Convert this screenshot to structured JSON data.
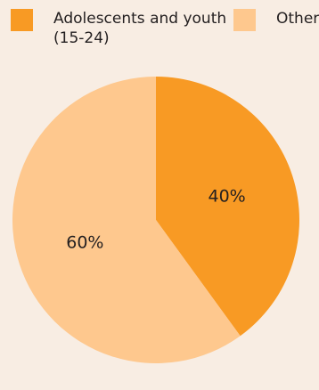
{
  "chart_data": {
    "type": "pie",
    "series": [
      {
        "name": "Adolescents and youth (15-24)",
        "value": 40,
        "color": "#f89a24"
      },
      {
        "name": "Other",
        "value": 60,
        "color": "#fec88e"
      }
    ],
    "data_labels": [
      "40%",
      "60%"
    ],
    "legend": {
      "placement": "top",
      "items": [
        {
          "label": "Adolescents and youth (15-24)",
          "color": "#f89a24"
        },
        {
          "label": "Other",
          "color": "#fec88e"
        }
      ]
    }
  }
}
